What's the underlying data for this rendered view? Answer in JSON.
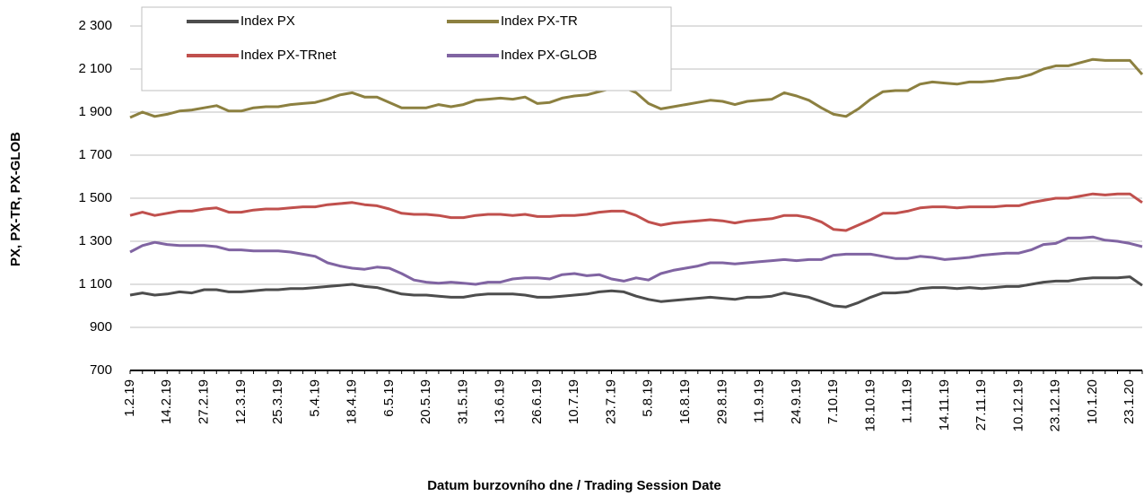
{
  "chart_data": {
    "type": "line",
    "x_label": "Datum burzovního dne / Trading Session Date",
    "y_label": "PX, PX-TR, PX-GLOB",
    "categories": [
      "1.2.19",
      null,
      null,
      "14.2.19",
      null,
      null,
      "27.2.19",
      null,
      null,
      "12.3.19",
      null,
      null,
      "25.3.19",
      null,
      null,
      "5.4.19",
      null,
      null,
      "18.4.19",
      null,
      null,
      "6.5.19",
      null,
      null,
      "20.5.19",
      null,
      null,
      "31.5.19",
      null,
      null,
      "13.6.19",
      null,
      null,
      "26.6.19",
      null,
      null,
      "10.7.19",
      null,
      null,
      "23.7.19",
      null,
      null,
      "5.8.19",
      null,
      null,
      "16.8.19",
      null,
      null,
      "29.8.19",
      null,
      null,
      "11.9.19",
      null,
      null,
      "24.9.19",
      null,
      null,
      "7.10.19",
      null,
      null,
      "18.10.19",
      null,
      null,
      "1.11.19",
      null,
      null,
      "14.11.19",
      null,
      null,
      "27.11.19",
      null,
      null,
      "10.12.19",
      null,
      null,
      "23.12.19",
      null,
      null,
      "10.1.20",
      null,
      null,
      "23.1.20",
      null
    ],
    "series": [
      {
        "name": "Index PX",
        "color": "#4d4d4d",
        "values": [
          1050,
          1060,
          1050,
          1055,
          1065,
          1060,
          1075,
          1075,
          1065,
          1065,
          1070,
          1075,
          1075,
          1080,
          1080,
          1085,
          1090,
          1095,
          1100,
          1090,
          1085,
          1070,
          1055,
          1050,
          1050,
          1045,
          1040,
          1040,
          1050,
          1055,
          1055,
          1055,
          1050,
          1040,
          1040,
          1045,
          1050,
          1055,
          1065,
          1070,
          1065,
          1045,
          1030,
          1020,
          1025,
          1030,
          1035,
          1040,
          1035,
          1030,
          1040,
          1040,
          1045,
          1060,
          1050,
          1040,
          1020,
          1000,
          995,
          1015,
          1040,
          1060,
          1060,
          1065,
          1080,
          1085,
          1085,
          1080,
          1085,
          1080,
          1085,
          1090,
          1090,
          1100,
          1110,
          1115,
          1115,
          1125,
          1130,
          1130,
          1130,
          1135,
          1095
        ]
      },
      {
        "name": "Index PX-TR",
        "color": "#8c8040",
        "values": [
          1875,
          1900,
          1880,
          1890,
          1905,
          1910,
          1920,
          1930,
          1905,
          1905,
          1920,
          1925,
          1925,
          1935,
          1940,
          1945,
          1960,
          1980,
          1990,
          1970,
          1970,
          1945,
          1920,
          1920,
          1920,
          1935,
          1925,
          1935,
          1955,
          1960,
          1965,
          1960,
          1970,
          1940,
          1945,
          1965,
          1975,
          1980,
          1995,
          2010,
          2015,
          1990,
          1940,
          1915,
          1925,
          1935,
          1945,
          1955,
          1950,
          1935,
          1950,
          1955,
          1960,
          1990,
          1975,
          1955,
          1920,
          1890,
          1880,
          1915,
          1960,
          1995,
          2000,
          2000,
          2030,
          2040,
          2035,
          2030,
          2040,
          2040,
          2045,
          2055,
          2060,
          2075,
          2100,
          2115,
          2115,
          2130,
          2145,
          2140,
          2140,
          2140,
          2075
        ]
      },
      {
        "name": "Index PX-TRnet",
        "color": "#c0504d",
        "values": [
          1420,
          1435,
          1420,
          1430,
          1440,
          1440,
          1450,
          1455,
          1435,
          1435,
          1445,
          1450,
          1450,
          1455,
          1460,
          1460,
          1470,
          1475,
          1480,
          1470,
          1465,
          1450,
          1430,
          1425,
          1425,
          1420,
          1410,
          1410,
          1420,
          1425,
          1425,
          1420,
          1425,
          1415,
          1415,
          1420,
          1420,
          1425,
          1435,
          1440,
          1440,
          1420,
          1390,
          1375,
          1385,
          1390,
          1395,
          1400,
          1395,
          1385,
          1395,
          1400,
          1405,
          1420,
          1420,
          1410,
          1390,
          1355,
          1350,
          1375,
          1400,
          1430,
          1430,
          1440,
          1455,
          1460,
          1460,
          1455,
          1460,
          1460,
          1460,
          1465,
          1465,
          1480,
          1490,
          1500,
          1500,
          1510,
          1520,
          1515,
          1520,
          1520,
          1480
        ]
      },
      {
        "name": "Index PX-GLOB",
        "color": "#8064a2",
        "values": [
          1250,
          1280,
          1295,
          1285,
          1280,
          1280,
          1280,
          1275,
          1260,
          1260,
          1255,
          1255,
          1255,
          1250,
          1240,
          1230,
          1200,
          1185,
          1175,
          1170,
          1180,
          1175,
          1150,
          1120,
          1110,
          1105,
          1110,
          1105,
          1100,
          1110,
          1110,
          1125,
          1130,
          1130,
          1125,
          1145,
          1150,
          1140,
          1145,
          1125,
          1115,
          1130,
          1120,
          1150,
          1165,
          1175,
          1185,
          1200,
          1200,
          1195,
          1200,
          1205,
          1210,
          1215,
          1210,
          1215,
          1215,
          1235,
          1240,
          1240,
          1240,
          1230,
          1220,
          1220,
          1230,
          1225,
          1215,
          1220,
          1225,
          1235,
          1240,
          1245,
          1245,
          1260,
          1285,
          1290,
          1315,
          1315,
          1320,
          1305,
          1300,
          1290,
          1275
        ]
      }
    ],
    "ylim": [
      700,
      2300
    ],
    "yticks": [
      700,
      900,
      {
        "value": 1100,
        "label": "1 100"
      },
      {
        "value": 1300,
        "label": "1 300"
      },
      {
        "value": 1500,
        "label": "1 500"
      },
      {
        "value": 1700,
        "label": "1 700"
      },
      {
        "value": 1900,
        "label": "1 900"
      },
      {
        "value": 2100,
        "label": "2 100"
      },
      {
        "value": 2300,
        "label": "2 300"
      }
    ],
    "grid": true
  }
}
